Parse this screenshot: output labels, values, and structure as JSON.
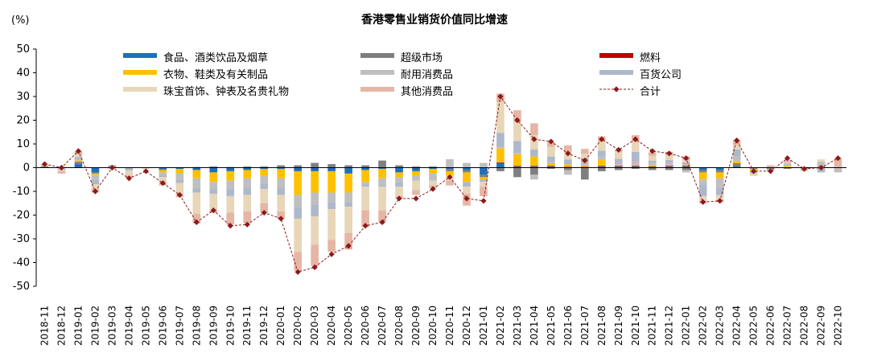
{
  "chart_data": {
    "type": "bar",
    "stacked": true,
    "title": "香港零售业销货价值同比增速",
    "ylabel": "(%)",
    "xlabel": "",
    "ylim": [
      -50,
      50
    ],
    "yticks": [
      -50,
      -40,
      -30,
      -20,
      -10,
      0,
      10,
      20,
      30,
      40,
      50
    ],
    "grid": false,
    "legend_position": "top",
    "categories": [
      "2018-11",
      "2018-12",
      "2019-01",
      "2019-02",
      "2019-03",
      "2019-04",
      "2019-05",
      "2019-06",
      "2019-07",
      "2019-08",
      "2019-09",
      "2019-10",
      "2019-11",
      "2019-12",
      "2020-01",
      "2020-02",
      "2020-03",
      "2020-04",
      "2020-05",
      "2020-06",
      "2020-07",
      "2020-08",
      "2020-09",
      "2020-10",
      "2020-11",
      "2020-12",
      "2021-01",
      "2021-02",
      "2021-03",
      "2021-04",
      "2021-05",
      "2021-06",
      "2021-07",
      "2021-08",
      "2021-09",
      "2021-10",
      "2021-11",
      "2021-12",
      "2022-01",
      "2022-02",
      "2022-03",
      "2022-04",
      "2022-05",
      "2022-06",
      "2022-07",
      "2022-08",
      "2022-09",
      "2022-10"
    ],
    "series": [
      {
        "name": "食品、酒类饮品及烟草",
        "color": "#1f6fb8",
        "values": [
          0.3,
          0.1,
          1.5,
          -2,
          0.3,
          -0.3,
          0.2,
          -0.5,
          -0.5,
          -1,
          -2,
          -1.5,
          -1,
          -0.5,
          -0.5,
          -1.5,
          -1.5,
          -1.5,
          -2.5,
          -1,
          -0.5,
          -2,
          -1.5,
          -0.5,
          -0.5,
          -1,
          -3,
          2,
          0.5,
          0.5,
          0.5,
          0.2,
          0.2,
          0.5,
          0.5,
          0.5,
          0.3,
          0.5,
          0.5,
          -1,
          -1,
          0.5,
          0,
          0,
          0.2,
          0,
          0,
          0
        ]
      },
      {
        "name": "超级市场",
        "color": "#7f7f7f",
        "values": [
          0.3,
          0.2,
          1,
          -0.5,
          0.3,
          0.2,
          0,
          -0.5,
          0.2,
          0.3,
          0.5,
          0.3,
          0.5,
          0.5,
          1,
          1,
          2,
          1.5,
          1,
          1,
          3,
          1,
          0.5,
          0.5,
          -1,
          -1,
          -1,
          -1.5,
          -4,
          -3,
          -0.5,
          -1,
          -5,
          -1.5,
          -1,
          -0.5,
          -1,
          -1,
          -1,
          -1,
          -1,
          1,
          -0.5,
          -0.5,
          -0.5,
          0.2,
          0.5,
          0
        ]
      },
      {
        "name": "燃料",
        "color": "#c00000",
        "values": [
          0,
          0,
          0,
          0,
          0,
          0,
          0,
          0,
          0,
          0,
          0,
          0,
          0,
          0,
          0,
          0,
          0,
          0,
          0,
          0,
          0,
          0,
          0,
          0,
          0,
          0,
          0,
          0.2,
          0.2,
          0.2,
          0.2,
          0.2,
          0.2,
          0.2,
          0.2,
          0.2,
          0.2,
          0.2,
          0.2,
          0,
          0,
          0.2,
          0,
          0,
          0,
          0,
          0,
          0
        ]
      },
      {
        "name": "衣物、鞋类及有关制品",
        "color": "#ffc000",
        "values": [
          0,
          0,
          0.5,
          -0.5,
          0,
          0,
          0,
          -1,
          -2,
          -3.5,
          -4,
          -4,
          -3.5,
          -3,
          -4,
          -10,
          -9,
          -9,
          -8,
          -5,
          -4,
          -2,
          -2,
          -2,
          -2,
          -4,
          -1,
          6,
          5,
          4,
          1,
          1,
          0.5,
          2.5,
          0.5,
          0.5,
          0.5,
          0.5,
          0.5,
          -3,
          -2.5,
          1,
          -1,
          0,
          0.5,
          0,
          0,
          0
        ]
      },
      {
        "name": "耐用消费品",
        "color": "#bfbfbf",
        "values": [
          0,
          -1,
          0.5,
          -2,
          0.5,
          -0.5,
          0,
          -1,
          -2.5,
          -4,
          -3,
          -3.5,
          -4,
          -3,
          -4,
          -5,
          -5,
          -4,
          -4,
          -1,
          -3,
          -2,
          -1.5,
          -2.5,
          3,
          2,
          2,
          0.5,
          0.5,
          -2,
          1,
          -2,
          1,
          1.5,
          0.5,
          1.5,
          1,
          1,
          -1,
          -2,
          -4,
          2,
          -1,
          -1,
          0.5,
          -1,
          2,
          -2
        ]
      },
      {
        "name": "百货公司",
        "color": "#adb9ca",
        "values": [
          0,
          0,
          1,
          -2,
          0,
          -0.5,
          0,
          -1,
          -1.5,
          -2,
          -2,
          -3,
          -3,
          -2.5,
          -3,
          -5,
          -5,
          -3,
          -2,
          -1,
          -0.5,
          -2,
          -0.5,
          -0.5,
          0.5,
          -2,
          -1,
          6,
          5,
          3,
          2,
          2,
          2,
          2.5,
          2,
          4,
          1,
          1,
          1,
          -5,
          -3,
          3,
          0,
          0,
          0.5,
          0,
          -2,
          0
        ]
      },
      {
        "name": "珠宝首饰、钟表及名贵礼物",
        "color": "#e7d6b8",
        "values": [
          0.5,
          -0.5,
          1,
          -2,
          0,
          -2,
          -0.5,
          -2.5,
          -5,
          -9,
          -7,
          -7,
          -7,
          -6,
          -7,
          -14,
          -12,
          -13,
          -11,
          -10,
          -10,
          -4,
          -4,
          -2,
          -2,
          -3,
          -2,
          13,
          8,
          6,
          4,
          3,
          2,
          4,
          3,
          4,
          2,
          2,
          1,
          -2,
          -2,
          2,
          -1,
          0,
          0.5,
          -0.5,
          1,
          0
        ]
      },
      {
        "name": "其他消费品",
        "color": "#e6b5a6",
        "values": [
          0.5,
          -1,
          1.5,
          -1.5,
          -0.5,
          -1,
          0,
          -1,
          -1,
          -4,
          -1,
          -5,
          -5,
          -4,
          -3,
          -8,
          -9,
          -5,
          -7,
          -7,
          -5,
          -1,
          -2,
          -1,
          -2,
          -5,
          -4,
          3.5,
          5,
          5,
          2,
          3,
          2,
          2,
          1,
          3,
          1.5,
          1.5,
          1.5,
          -1,
          -1,
          2,
          0,
          1,
          1,
          0,
          0,
          4
        ]
      }
    ],
    "total": {
      "name": "合计",
      "color": "#8b1a1a",
      "values": [
        1.5,
        0,
        7,
        -10,
        0,
        -4.5,
        -1.5,
        -6.5,
        -11.5,
        -23,
        -18,
        -24.5,
        -24,
        -19,
        -21.5,
        -44,
        -42,
        -36.5,
        -33,
        -24.5,
        -23,
        -13,
        -13,
        -9,
        -4,
        -13,
        -14,
        30,
        20,
        12,
        11,
        6,
        3,
        12,
        7.5,
        12,
        7,
        6,
        4,
        -14.5,
        -14,
        11.5,
        -1.5,
        -1.5,
        4,
        -0.5,
        0,
        4
      ]
    }
  }
}
